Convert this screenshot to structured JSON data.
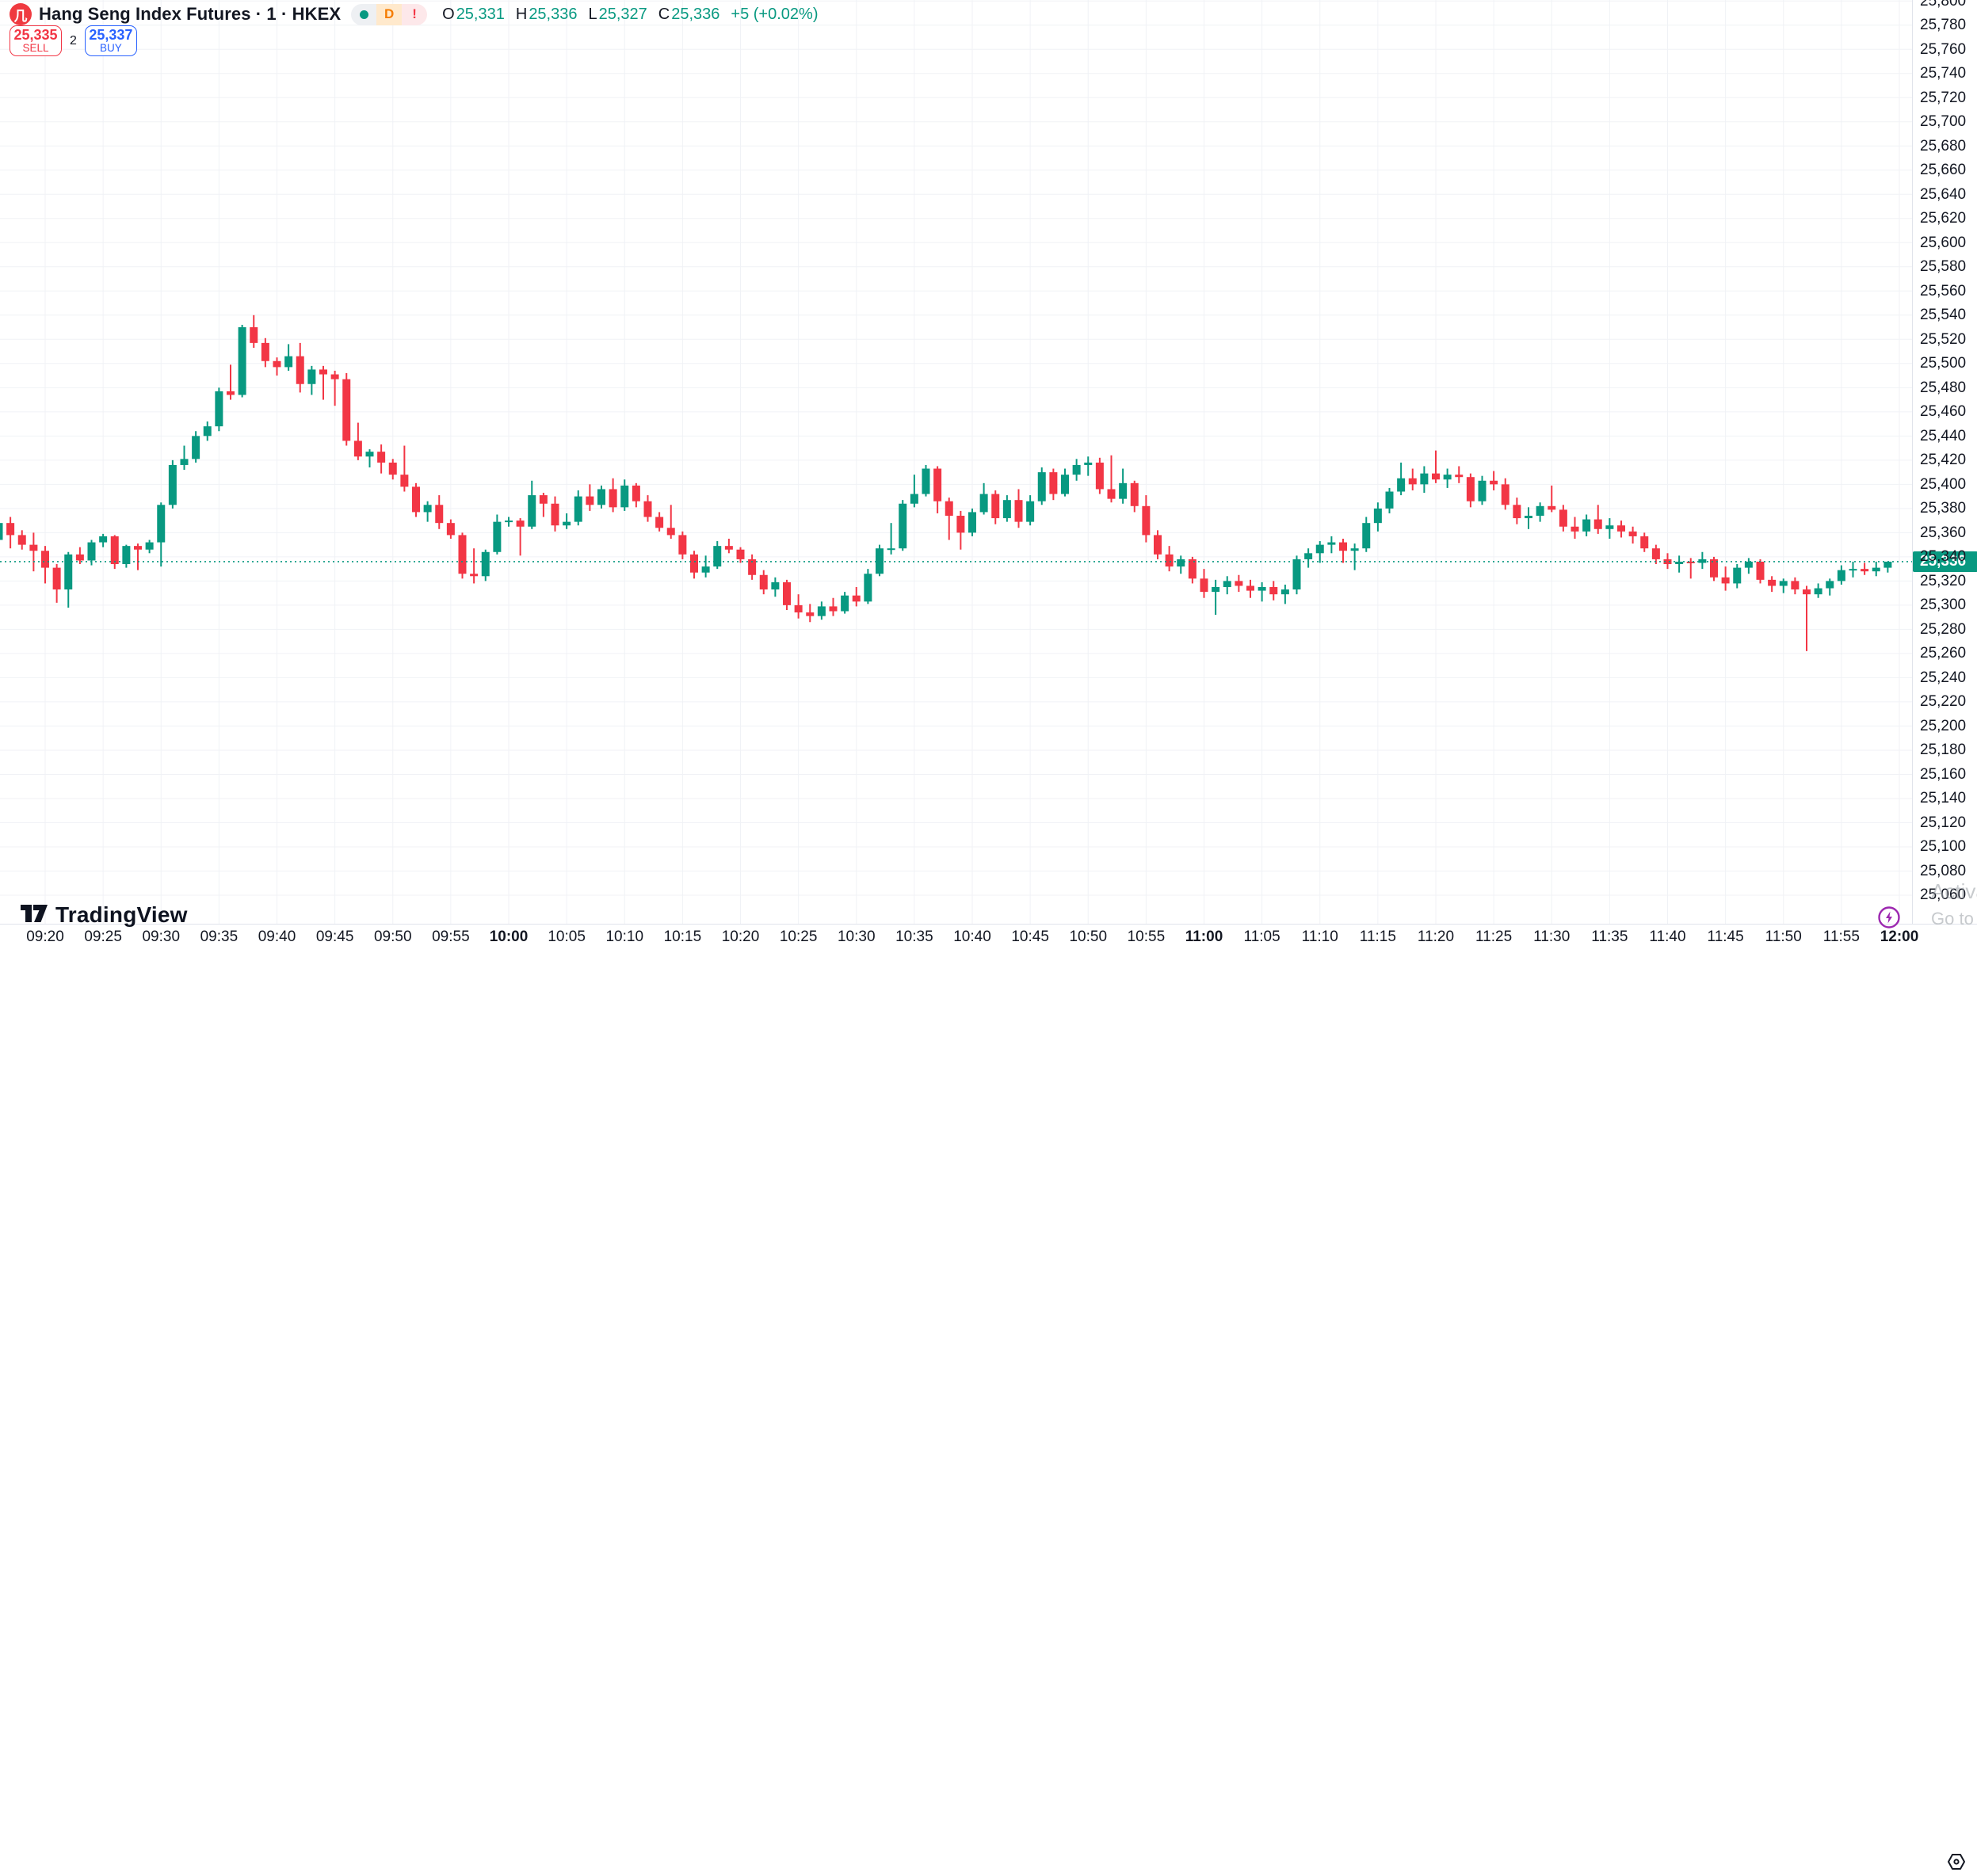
{
  "header": {
    "title": "Hang Seng Index Futures · 1 · HKEX",
    "logo_letter": "几",
    "badges": {
      "delayed": "D",
      "alert": "!"
    },
    "ohlc": {
      "o_label": "O",
      "o": "25,331",
      "h_label": "H",
      "h": "25,336",
      "l_label": "L",
      "l": "25,327",
      "c_label": "C",
      "c": "25,336",
      "change": "+5 (+0.02%)"
    }
  },
  "order_panel": {
    "sell_price": "25,335",
    "sell_label": "SELL",
    "spread": "2",
    "buy_price": "25,337",
    "buy_label": "BUY"
  },
  "brand": {
    "name": "TradingView"
  },
  "windows_watermark": {
    "line1": "Activate Windows",
    "line2": "Go to Settings to activate Windows."
  },
  "price_axis": {
    "last_price": "25,336",
    "labels": [
      "25,800",
      "25,780",
      "25,760",
      "25,740",
      "25,720",
      "25,700",
      "25,680",
      "25,660",
      "25,640",
      "25,620",
      "25,600",
      "25,580",
      "25,560",
      "25,540",
      "25,520",
      "25,500",
      "25,480",
      "25,460",
      "25,440",
      "25,420",
      "25,400",
      "25,380",
      "25,360",
      "25,340",
      "25,320",
      "25,300",
      "25,280",
      "25,260",
      "25,240",
      "25,220",
      "25,200",
      "25,180",
      "25,160",
      "25,140",
      "25,120",
      "25,100",
      "25,080",
      "25,060"
    ]
  },
  "time_axis": {
    "labels": [
      "09:20",
      "09:25",
      "09:30",
      "09:35",
      "09:40",
      "09:45",
      "09:50",
      "09:55",
      "10:00",
      "10:05",
      "10:10",
      "10:15",
      "10:20",
      "10:25",
      "10:30",
      "10:35",
      "10:40",
      "10:45",
      "10:50",
      "10:55",
      "11:00",
      "11:05",
      "11:10",
      "11:15",
      "11:20",
      "11:25",
      "11:30",
      "11:35",
      "11:40",
      "11:45",
      "11:50",
      "11:55",
      "12:00"
    ],
    "bold_labels": [
      "10:00",
      "11:00",
      "12:00"
    ]
  },
  "colors": {
    "up": "#089981",
    "down": "#F23645",
    "grid": "#f0f2f6",
    "accent_blue": "#2962FF",
    "accent_red": "#F23645",
    "purple": "#9C27B0",
    "text": "#131722",
    "badge_bg": "#089981"
  },
  "chart_data": {
    "type": "candlestick",
    "symbol": "Hang Seng Index Futures",
    "exchange": "HKEX",
    "interval": "1",
    "title": "Hang Seng Index Futures · 1 · HKEX",
    "ylim": [
      25040,
      25805
    ],
    "grid": true,
    "current_price": 25336,
    "price_step_per_gridline": 20,
    "candles": [
      [
        "09:16",
        25354,
        25370,
        25350,
        25368
      ],
      [
        "09:17",
        25368,
        25373,
        25347,
        25358
      ],
      [
        "09:18",
        25358,
        25362,
        25346,
        25350
      ],
      [
        "09:19",
        25350,
        25360,
        25328,
        25345
      ],
      [
        "09:20",
        25345,
        25349,
        25318,
        25331
      ],
      [
        "09:21",
        25331,
        25334,
        25302,
        25313
      ],
      [
        "09:22",
        25313,
        25344,
        25298,
        25342
      ],
      [
        "09:23",
        25342,
        25348,
        25334,
        25337
      ],
      [
        "09:24",
        25337,
        25354,
        25333,
        25352
      ],
      [
        "09:25",
        25352,
        25359,
        25348,
        25357
      ],
      [
        "09:26",
        25357,
        25358,
        25330,
        25334
      ],
      [
        "09:27",
        25334,
        25350,
        25331,
        25349
      ],
      [
        "09:28",
        25349,
        25351,
        25329,
        25346
      ],
      [
        "09:29",
        25346,
        25354,
        25343,
        25352
      ],
      [
        "09:30",
        25352,
        25385,
        25332,
        25383
      ],
      [
        "09:31",
        25383,
        25420,
        25380,
        25416
      ],
      [
        "09:32",
        25416,
        25432,
        25412,
        25421
      ],
      [
        "09:33",
        25421,
        25444,
        25418,
        25440
      ],
      [
        "09:34",
        25440,
        25452,
        25436,
        25448
      ],
      [
        "09:35",
        25448,
        25480,
        25444,
        25477
      ],
      [
        "09:36",
        25477,
        25499,
        25470,
        25474
      ],
      [
        "09:37",
        25474,
        25532,
        25472,
        25530
      ],
      [
        "09:38",
        25530,
        25540,
        25513,
        25517
      ],
      [
        "09:39",
        25517,
        25521,
        25497,
        25502
      ],
      [
        "09:40",
        25502,
        25505,
        25490,
        25497
      ],
      [
        "09:41",
        25497,
        25516,
        25494,
        25506
      ],
      [
        "09:42",
        25506,
        25517,
        25476,
        25483
      ],
      [
        "09:43",
        25483,
        25498,
        25474,
        25495
      ],
      [
        "09:44",
        25495,
        25498,
        25470,
        25491
      ],
      [
        "09:45",
        25491,
        25494,
        25465,
        25487
      ],
      [
        "09:46",
        25487,
        25492,
        25432,
        25436
      ],
      [
        "09:47",
        25436,
        25451,
        25420,
        25423
      ],
      [
        "09:48",
        25423,
        25429,
        25414,
        25427
      ],
      [
        "09:49",
        25427,
        25433,
        25409,
        25418
      ],
      [
        "09:50",
        25418,
        25421,
        25404,
        25408
      ],
      [
        "09:51",
        25408,
        25432,
        25394,
        25398
      ],
      [
        "09:52",
        25398,
        25401,
        25373,
        25377
      ],
      [
        "09:53",
        25377,
        25386,
        25369,
        25383
      ],
      [
        "09:54",
        25383,
        25391,
        25363,
        25368
      ],
      [
        "09:55",
        25368,
        25371,
        25355,
        25358
      ],
      [
        "09:56",
        25358,
        25360,
        25322,
        25326
      ],
      [
        "09:57",
        25326,
        25347,
        25318,
        25324
      ],
      [
        "09:58",
        25324,
        25346,
        25320,
        25344
      ],
      [
        "09:59",
        25344,
        25375,
        25342,
        25369
      ],
      [
        "10:00",
        25369,
        25373,
        25365,
        25370
      ],
      [
        "10:01",
        25370,
        25372,
        25341,
        25365
      ],
      [
        "10:02",
        25365,
        25403,
        25363,
        25391
      ],
      [
        "10:03",
        25391,
        25393,
        25373,
        25384
      ],
      [
        "10:04",
        25384,
        25390,
        25361,
        25366
      ],
      [
        "10:05",
        25366,
        25376,
        25363,
        25369
      ],
      [
        "10:06",
        25369,
        25395,
        25366,
        25390
      ],
      [
        "10:07",
        25390,
        25400,
        25378,
        25383
      ],
      [
        "10:08",
        25383,
        25399,
        25380,
        25396
      ],
      [
        "10:09",
        25396,
        25405,
        25377,
        25381
      ],
      [
        "10:10",
        25381,
        25404,
        25378,
        25399
      ],
      [
        "10:11",
        25399,
        25401,
        25381,
        25386
      ],
      [
        "10:12",
        25386,
        25391,
        25369,
        25373
      ],
      [
        "10:13",
        25373,
        25377,
        25361,
        25364
      ],
      [
        "10:14",
        25364,
        25383,
        25355,
        25358
      ],
      [
        "10:15",
        25358,
        25361,
        25338,
        25342
      ],
      [
        "10:16",
        25342,
        25345,
        25322,
        25327
      ],
      [
        "10:17",
        25327,
        25341,
        25323,
        25332
      ],
      [
        "10:18",
        25332,
        25353,
        25330,
        25349
      ],
      [
        "10:19",
        25349,
        25355,
        25343,
        25346
      ],
      [
        "10:20",
        25346,
        25348,
        25335,
        25338
      ],
      [
        "10:21",
        25338,
        25342,
        25321,
        25325
      ],
      [
        "10:22",
        25325,
        25329,
        25309,
        25313
      ],
      [
        "10:23",
        25313,
        25323,
        25307,
        25319
      ],
      [
        "10:24",
        25319,
        25321,
        25296,
        25300
      ],
      [
        "10:25",
        25300,
        25309,
        25289,
        25294
      ],
      [
        "10:26",
        25294,
        25301,
        25286,
        25291
      ],
      [
        "10:27",
        25291,
        25303,
        25288,
        25299
      ],
      [
        "10:28",
        25299,
        25306,
        25291,
        25295
      ],
      [
        "10:29",
        25295,
        25311,
        25293,
        25308
      ],
      [
        "10:30",
        25308,
        25315,
        25299,
        25303
      ],
      [
        "10:31",
        25303,
        25330,
        25301,
        25326
      ],
      [
        "10:32",
        25326,
        25350,
        25324,
        25347
      ],
      [
        "10:33",
        25347,
        25368,
        25342,
        25347
      ],
      [
        "10:34",
        25347,
        25387,
        25345,
        25384
      ],
      [
        "10:35",
        25384,
        25408,
        25381,
        25392
      ],
      [
        "10:36",
        25392,
        25416,
        25390,
        25413
      ],
      [
        "10:37",
        25413,
        25415,
        25376,
        25386
      ],
      [
        "10:38",
        25386,
        25389,
        25354,
        25374
      ],
      [
        "10:39",
        25374,
        25378,
        25346,
        25360
      ],
      [
        "10:40",
        25360,
        25380,
        25357,
        25377
      ],
      [
        "10:41",
        25377,
        25401,
        25375,
        25392
      ],
      [
        "10:42",
        25392,
        25395,
        25367,
        25372
      ],
      [
        "10:43",
        25372,
        25391,
        25369,
        25387
      ],
      [
        "10:44",
        25387,
        25396,
        25364,
        25369
      ],
      [
        "10:45",
        25369,
        25391,
        25366,
        25386
      ],
      [
        "10:46",
        25386,
        25414,
        25383,
        25410
      ],
      [
        "10:47",
        25410,
        25413,
        25387,
        25392
      ],
      [
        "10:48",
        25392,
        25413,
        25390,
        25408
      ],
      [
        "10:49",
        25408,
        25421,
        25403,
        25416
      ],
      [
        "10:50",
        25416,
        25423,
        25407,
        25418
      ],
      [
        "10:51",
        25418,
        25422,
        25392,
        25396
      ],
      [
        "10:52",
        25396,
        25424,
        25385,
        25388
      ],
      [
        "10:53",
        25388,
        25413,
        25384,
        25401
      ],
      [
        "10:54",
        25401,
        25403,
        25377,
        25382
      ],
      [
        "10:55",
        25382,
        25391,
        25352,
        25358
      ],
      [
        "10:56",
        25358,
        25362,
        25338,
        25342
      ],
      [
        "10:57",
        25342,
        25349,
        25328,
        25332
      ],
      [
        "10:58",
        25332,
        25341,
        25326,
        25338
      ],
      [
        "10:59",
        25338,
        25340,
        25318,
        25322
      ],
      [
        "11:00",
        25322,
        25330,
        25306,
        25311
      ],
      [
        "11:01",
        25311,
        25321,
        25292,
        25315
      ],
      [
        "11:02",
        25315,
        25324,
        25309,
        25320
      ],
      [
        "11:03",
        25320,
        25325,
        25311,
        25316
      ],
      [
        "11:04",
        25316,
        25321,
        25306,
        25312
      ],
      [
        "11:05",
        25312,
        25319,
        25303,
        25315
      ],
      [
        "11:06",
        25315,
        25320,
        25304,
        25309
      ],
      [
        "11:07",
        25309,
        25317,
        25301,
        25313
      ],
      [
        "11:08",
        25313,
        25341,
        25309,
        25338
      ],
      [
        "11:09",
        25338,
        25347,
        25331,
        25343
      ],
      [
        "11:10",
        25343,
        25353,
        25335,
        25350
      ],
      [
        "11:11",
        25350,
        25357,
        25343,
        25352
      ],
      [
        "11:12",
        25352,
        25355,
        25335,
        25345
      ],
      [
        "11:13",
        25345,
        25351,
        25329,
        25347
      ],
      [
        "11:14",
        25347,
        25373,
        25344,
        25368
      ],
      [
        "11:15",
        25368,
        25385,
        25361,
        25380
      ],
      [
        "11:16",
        25380,
        25397,
        25376,
        25394
      ],
      [
        "11:17",
        25394,
        25418,
        25391,
        25405
      ],
      [
        "11:18",
        25405,
        25413,
        25395,
        25400
      ],
      [
        "11:19",
        25400,
        25415,
        25393,
        25409
      ],
      [
        "11:20",
        25409,
        25428,
        25401,
        25404
      ],
      [
        "11:21",
        25404,
        25413,
        25397,
        25408
      ],
      [
        "11:22",
        25408,
        25415,
        25401,
        25406
      ],
      [
        "11:23",
        25406,
        25409,
        25381,
        25386
      ],
      [
        "11:24",
        25386,
        25407,
        25383,
        25403
      ],
      [
        "11:25",
        25403,
        25411,
        25395,
        25400
      ],
      [
        "11:26",
        25400,
        25405,
        25379,
        25383
      ],
      [
        "11:27",
        25383,
        25389,
        25367,
        25372
      ],
      [
        "11:28",
        25372,
        25381,
        25363,
        25374
      ],
      [
        "11:29",
        25374,
        25385,
        25369,
        25382
      ],
      [
        "11:30",
        25382,
        25399,
        25377,
        25379
      ],
      [
        "11:31",
        25379,
        25383,
        25361,
        25365
      ],
      [
        "11:32",
        25365,
        25373,
        25355,
        25361
      ],
      [
        "11:33",
        25361,
        25375,
        25357,
        25371
      ],
      [
        "11:34",
        25371,
        25383,
        25359,
        25363
      ],
      [
        "11:35",
        25363,
        25372,
        25355,
        25366
      ],
      [
        "11:36",
        25366,
        25370,
        25356,
        25361
      ],
      [
        "11:37",
        25361,
        25365,
        25351,
        25357
      ],
      [
        "11:38",
        25357,
        25360,
        25344,
        25347
      ],
      [
        "11:39",
        25347,
        25350,
        25334,
        25338
      ],
      [
        "11:40",
        25338,
        25343,
        25330,
        25334
      ],
      [
        "11:41",
        25334,
        25341,
        25327,
        25336
      ],
      [
        "11:42",
        25336,
        25339,
        25322,
        25335
      ],
      [
        "11:43",
        25335,
        25344,
        25330,
        25338
      ],
      [
        "11:44",
        25338,
        25340,
        25320,
        25323
      ],
      [
        "11:45",
        25323,
        25332,
        25312,
        25318
      ],
      [
        "11:46",
        25318,
        25334,
        25314,
        25331
      ],
      [
        "11:47",
        25331,
        25339,
        25326,
        25336
      ],
      [
        "11:48",
        25336,
        25338,
        25318,
        25321
      ],
      [
        "11:49",
        25321,
        25324,
        25311,
        25316
      ],
      [
        "11:50",
        25316,
        25322,
        25310,
        25320
      ],
      [
        "11:51",
        25320,
        25323,
        25309,
        25313
      ],
      [
        "11:52",
        25313,
        25316,
        25262,
        25309
      ],
      [
        "11:53",
        25309,
        25318,
        25306,
        25314
      ],
      [
        "11:54",
        25314,
        25322,
        25308,
        25320
      ],
      [
        "11:55",
        25320,
        25333,
        25317,
        25329
      ],
      [
        "11:56",
        25329,
        25336,
        25323,
        25330
      ],
      [
        "11:57",
        25330,
        25335,
        25325,
        25328
      ],
      [
        "11:58",
        25328,
        25336,
        25324,
        25331
      ],
      [
        "11:59",
        25331,
        25336,
        25327,
        25336
      ]
    ]
  }
}
